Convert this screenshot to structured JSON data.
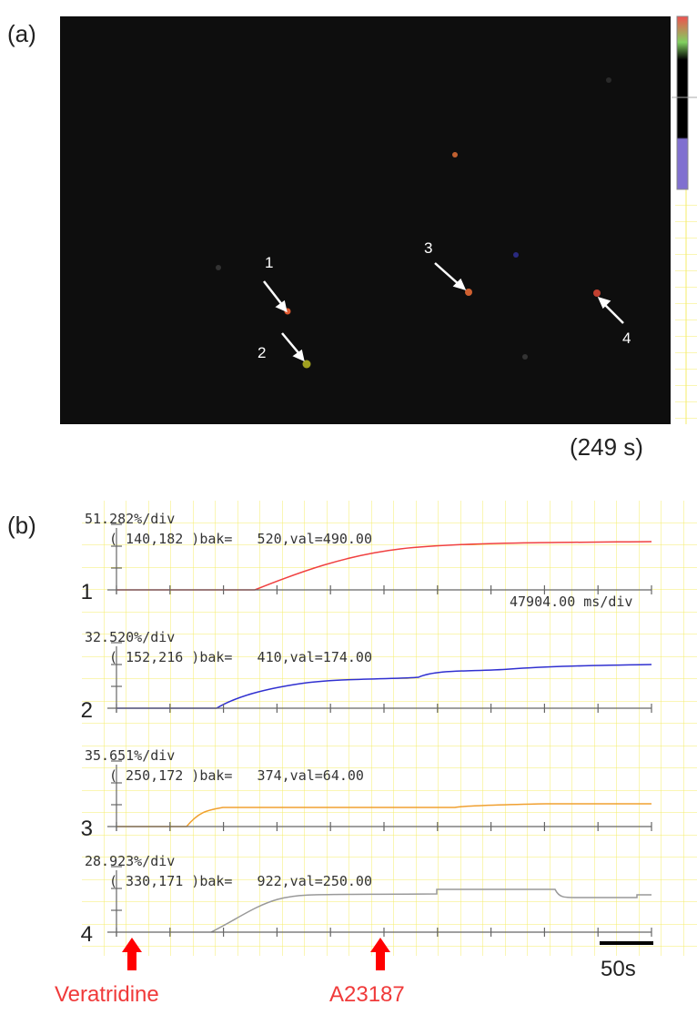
{
  "panel_a": {
    "label": "(a)",
    "time_label": "(249 s)",
    "cell_labels": [
      "1",
      "2",
      "3",
      "4"
    ]
  },
  "panel_b": {
    "label": "(b)",
    "time_scale": "47904.00 ms/div",
    "traces": [
      {
        "label": "1",
        "scale": "51.282%/div",
        "info": "( 140,182 )bak=   520,val=490.00"
      },
      {
        "label": "2",
        "scale": "32.520%/div",
        "info": "( 152,216 )bak=   410,val=174.00"
      },
      {
        "label": "3",
        "scale": "35.651%/div",
        "info": "( 250,172 )bak=   374,val=64.00"
      },
      {
        "label": "4",
        "scale": "28.923%/div",
        "info": "( 330,171 )bak=   922,val=250.00"
      }
    ],
    "markers": [
      "Veratridine",
      "A23187"
    ],
    "scale_bar": "50s"
  }
}
